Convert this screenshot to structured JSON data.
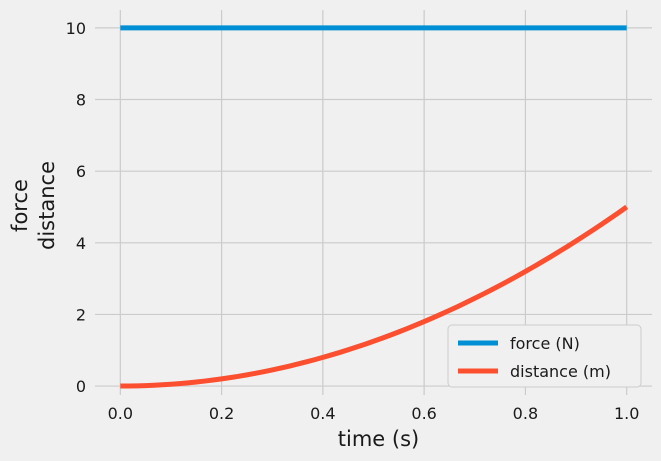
{
  "chart_data": {
    "type": "line",
    "xlabel": "time (s)",
    "ylabel_lines": [
      "force",
      "distance"
    ],
    "xlim": [
      -0.05,
      1.05
    ],
    "ylim": [
      -0.25,
      10.5
    ],
    "x_ticks": [
      0.0,
      0.2,
      0.4,
      0.6,
      0.8,
      1.0
    ],
    "x_tick_labels": [
      "0.0",
      "0.2",
      "0.4",
      "0.6",
      "0.8",
      "1.0"
    ],
    "y_ticks": [
      0,
      2,
      4,
      6,
      8,
      10
    ],
    "y_tick_labels": [
      "0",
      "2",
      "4",
      "6",
      "8",
      "10"
    ],
    "grid": true,
    "legend_position": "lower-right",
    "x": [
      0.0,
      0.1,
      0.2,
      0.3,
      0.4,
      0.5,
      0.6,
      0.7,
      0.8,
      0.9,
      1.0
    ],
    "series": [
      {
        "name": "force (N)",
        "color": "#008fd5",
        "values": [
          10,
          10,
          10,
          10,
          10,
          10,
          10,
          10,
          10,
          10,
          10
        ]
      },
      {
        "name": "distance (m)",
        "color": "#fc4f30",
        "values": [
          0.0,
          0.05,
          0.2,
          0.45,
          0.8,
          1.25,
          1.8,
          2.45,
          3.2,
          4.05,
          5.0
        ]
      }
    ]
  }
}
